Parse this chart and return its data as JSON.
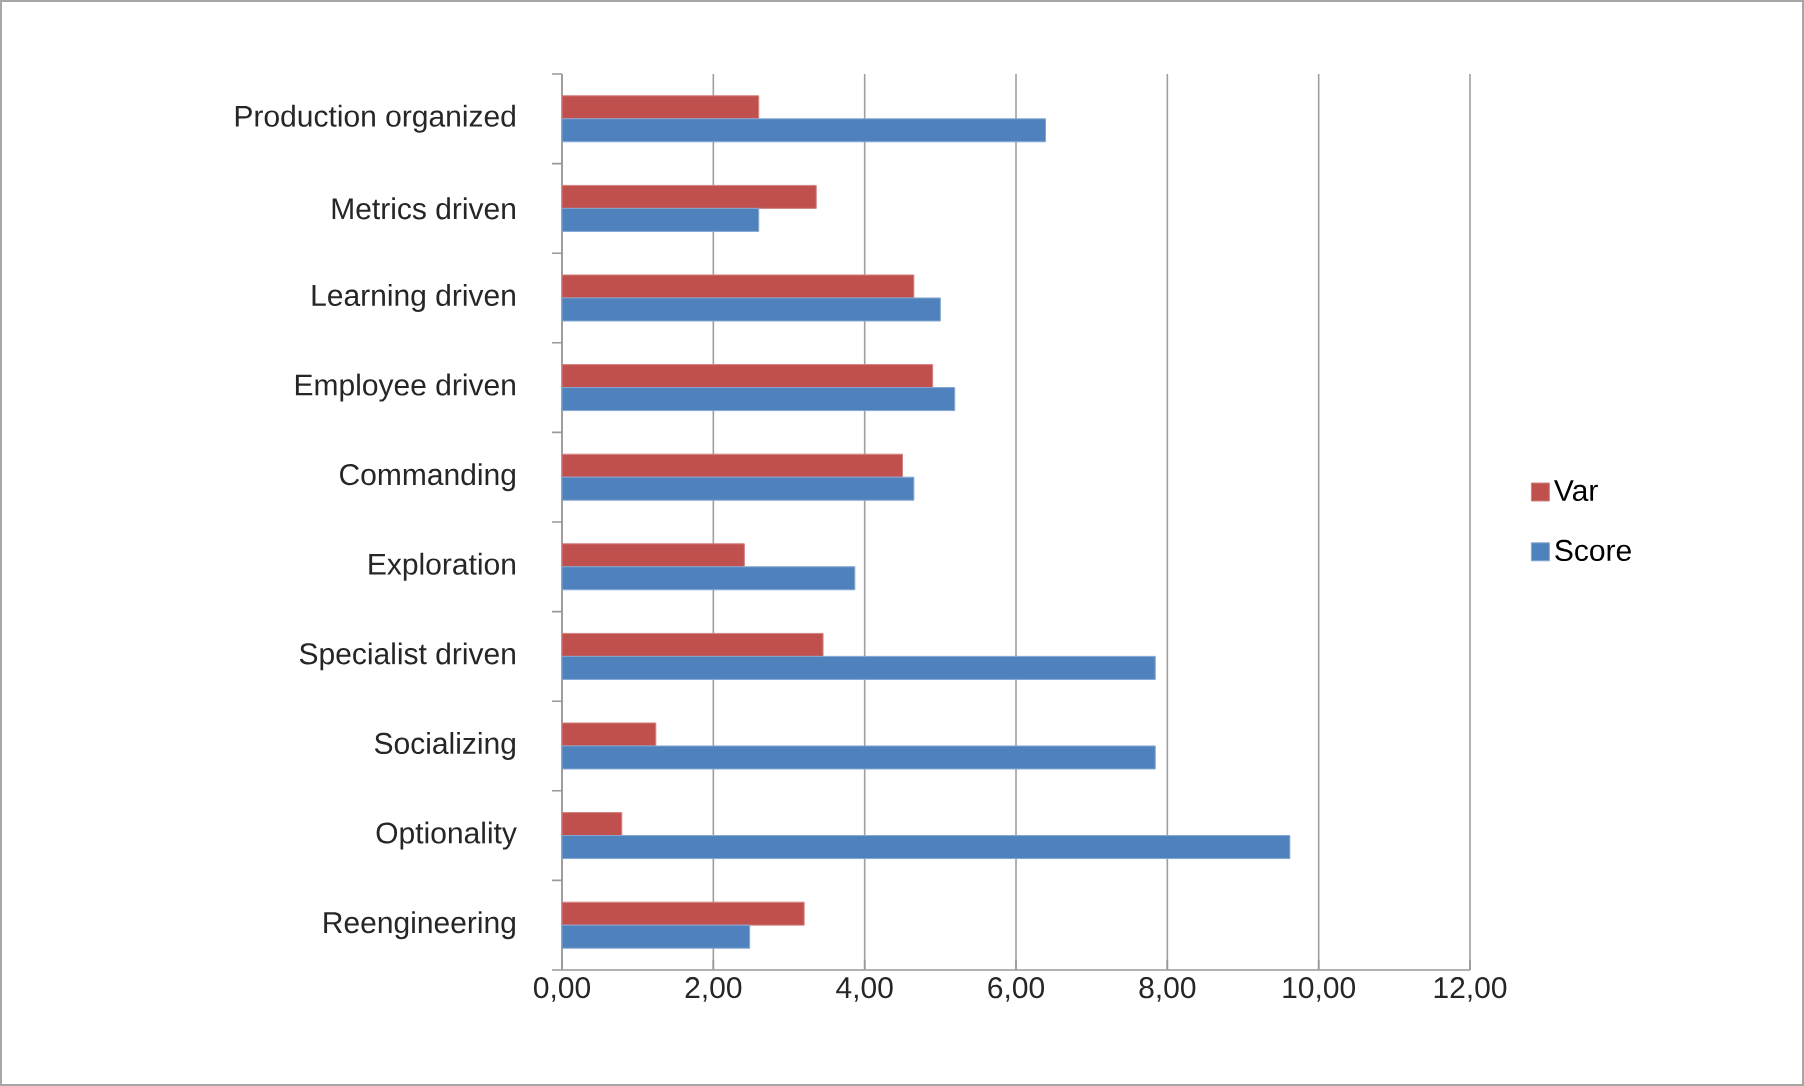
{
  "chart_data": {
    "type": "bar",
    "orientation": "horizontal",
    "categories": [
      "Production organized",
      "Metrics driven",
      "Learning driven",
      "Employee driven",
      "Commanding",
      "Exploration",
      "Specialist driven",
      "Socializing",
      "Optionality",
      "Reengineering"
    ],
    "series": [
      {
        "name": "Var",
        "color": "#c0504d",
        "values": [
          2.6,
          3.36,
          4.65,
          4.9,
          4.5,
          2.41,
          3.45,
          1.24,
          0.79,
          3.2
        ]
      },
      {
        "name": "Score",
        "color": "#4f81bd",
        "values": [
          6.39,
          2.6,
          5.0,
          5.19,
          4.65,
          3.87,
          7.84,
          7.84,
          9.62,
          2.48
        ]
      }
    ],
    "xlim": [
      0,
      12
    ],
    "xticks": [
      {
        "value": 0,
        "label": "0,00"
      },
      {
        "value": 2,
        "label": "2,00"
      },
      {
        "value": 4,
        "label": "4,00"
      },
      {
        "value": 6,
        "label": "6,00"
      },
      {
        "value": 8,
        "label": "8,00"
      },
      {
        "value": 10,
        "label": "10,00"
      },
      {
        "value": 12,
        "label": "12,00"
      }
    ],
    "grid": "x",
    "legend": "right"
  }
}
